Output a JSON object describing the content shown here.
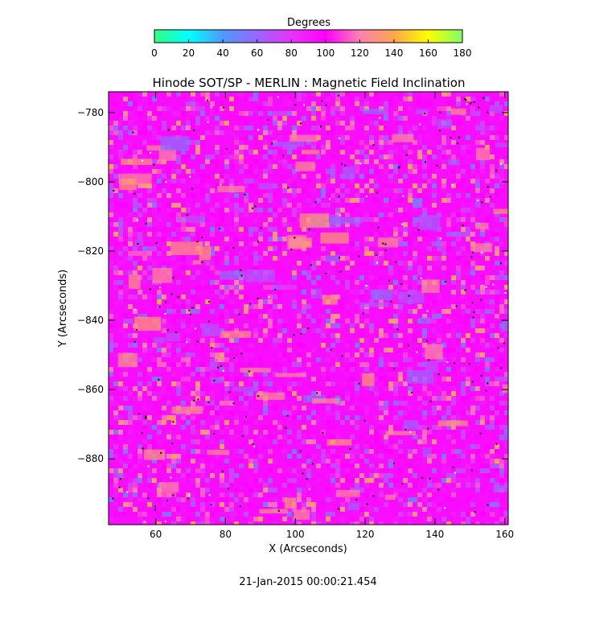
{
  "chart_data": {
    "type": "heatmap",
    "title": "Hinode SOT/SP - MERLIN : Magnetic Field Inclination",
    "xlabel": "X (Arcseconds)",
    "ylabel": "Y (Arcseconds)",
    "xlim": [
      46.5,
      161
    ],
    "ylim": [
      -899,
      -774
    ],
    "x_ticks": [
      60,
      80,
      100,
      120,
      140,
      160
    ],
    "y_ticks": [
      -780,
      -800,
      -820,
      -840,
      -860,
      -880
    ],
    "colorbar": {
      "label": "Degrees",
      "range": [
        0,
        180
      ],
      "ticks": [
        0,
        20,
        40,
        60,
        80,
        100,
        120,
        140,
        160,
        180
      ],
      "colors": [
        "#33ff80",
        "#00ffff",
        "#4d9aff",
        "#9966ff",
        "#e633ff",
        "#ff00ff",
        "#ff80b3",
        "#ffa64d",
        "#ffff00",
        "#80ff66"
      ]
    },
    "timestamp": "21-Jan-2015 00:00:21.454",
    "dominant_value": 95,
    "value_distribution": [
      {
        "value": 60,
        "share": 0.06
      },
      {
        "value": 75,
        "share": 0.16
      },
      {
        "value": 95,
        "share": 0.58
      },
      {
        "value": 115,
        "share": 0.14
      },
      {
        "value": 130,
        "share": 0.06
      }
    ]
  }
}
